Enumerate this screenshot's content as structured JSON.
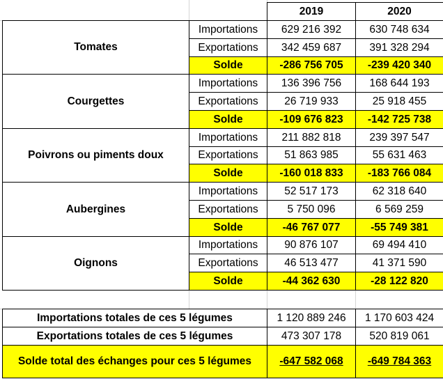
{
  "header": {
    "years": [
      "2019",
      "2020"
    ]
  },
  "products": [
    {
      "name": "Tomates",
      "rows": [
        {
          "label": "Importations",
          "values": [
            "629 216 392",
            "630 748 634"
          ]
        },
        {
          "label": "Exportations",
          "values": [
            "342 459 687",
            "391 328 294"
          ]
        },
        {
          "label": "Solde",
          "values": [
            "-286 756 705",
            "-239 420 340"
          ]
        }
      ]
    },
    {
      "name": "Courgettes",
      "rows": [
        {
          "label": "Importations",
          "values": [
            "136 396 756",
            "168 644 193"
          ]
        },
        {
          "label": "Exportations",
          "values": [
            "26 719 933",
            "25 918 455"
          ]
        },
        {
          "label": "Solde",
          "values": [
            "-109 676 823",
            "-142 725 738"
          ]
        }
      ]
    },
    {
      "name": "Poivrons ou piments doux",
      "rows": [
        {
          "label": "Importations",
          "values": [
            "211 882 818",
            "239 397 547"
          ]
        },
        {
          "label": "Exportations",
          "values": [
            "51 863 985",
            "55 631 463"
          ]
        },
        {
          "label": "Solde",
          "values": [
            "-160 018 833",
            "-183 766 084"
          ]
        }
      ]
    },
    {
      "name": "Aubergines",
      "rows": [
        {
          "label": "Importations",
          "values": [
            "52 517 173",
            "62 318 640"
          ]
        },
        {
          "label": "Exportations",
          "values": [
            "5 750 096",
            "6 569 259"
          ]
        },
        {
          "label": "Solde",
          "values": [
            "-46 767 077",
            "-55 749 381"
          ]
        }
      ]
    },
    {
      "name": "Oignons",
      "rows": [
        {
          "label": "Importations",
          "values": [
            "90 876 107",
            "69 494 410"
          ]
        },
        {
          "label": "Exportations",
          "values": [
            "46 513 477",
            "41 371 590"
          ]
        },
        {
          "label": "Solde",
          "values": [
            "-44 362 630",
            "-28 122 820"
          ]
        }
      ]
    }
  ],
  "totals": [
    {
      "label": "Importations totales de ces 5 légumes",
      "values": [
        "1 120 889 246",
        "1 170 603 424"
      ]
    },
    {
      "label": "Exportations totales de ces 5 légumes",
      "values": [
        "473 307 178",
        "520 819 061"
      ]
    },
    {
      "label": "Solde total des échanges pour ces 5 légumes",
      "values": [
        "-647 582 068",
        "-649 784 363"
      ]
    }
  ],
  "colors": {
    "highlight": "#ffff00",
    "border": "#000000",
    "gridline": "#d4d4d4"
  }
}
